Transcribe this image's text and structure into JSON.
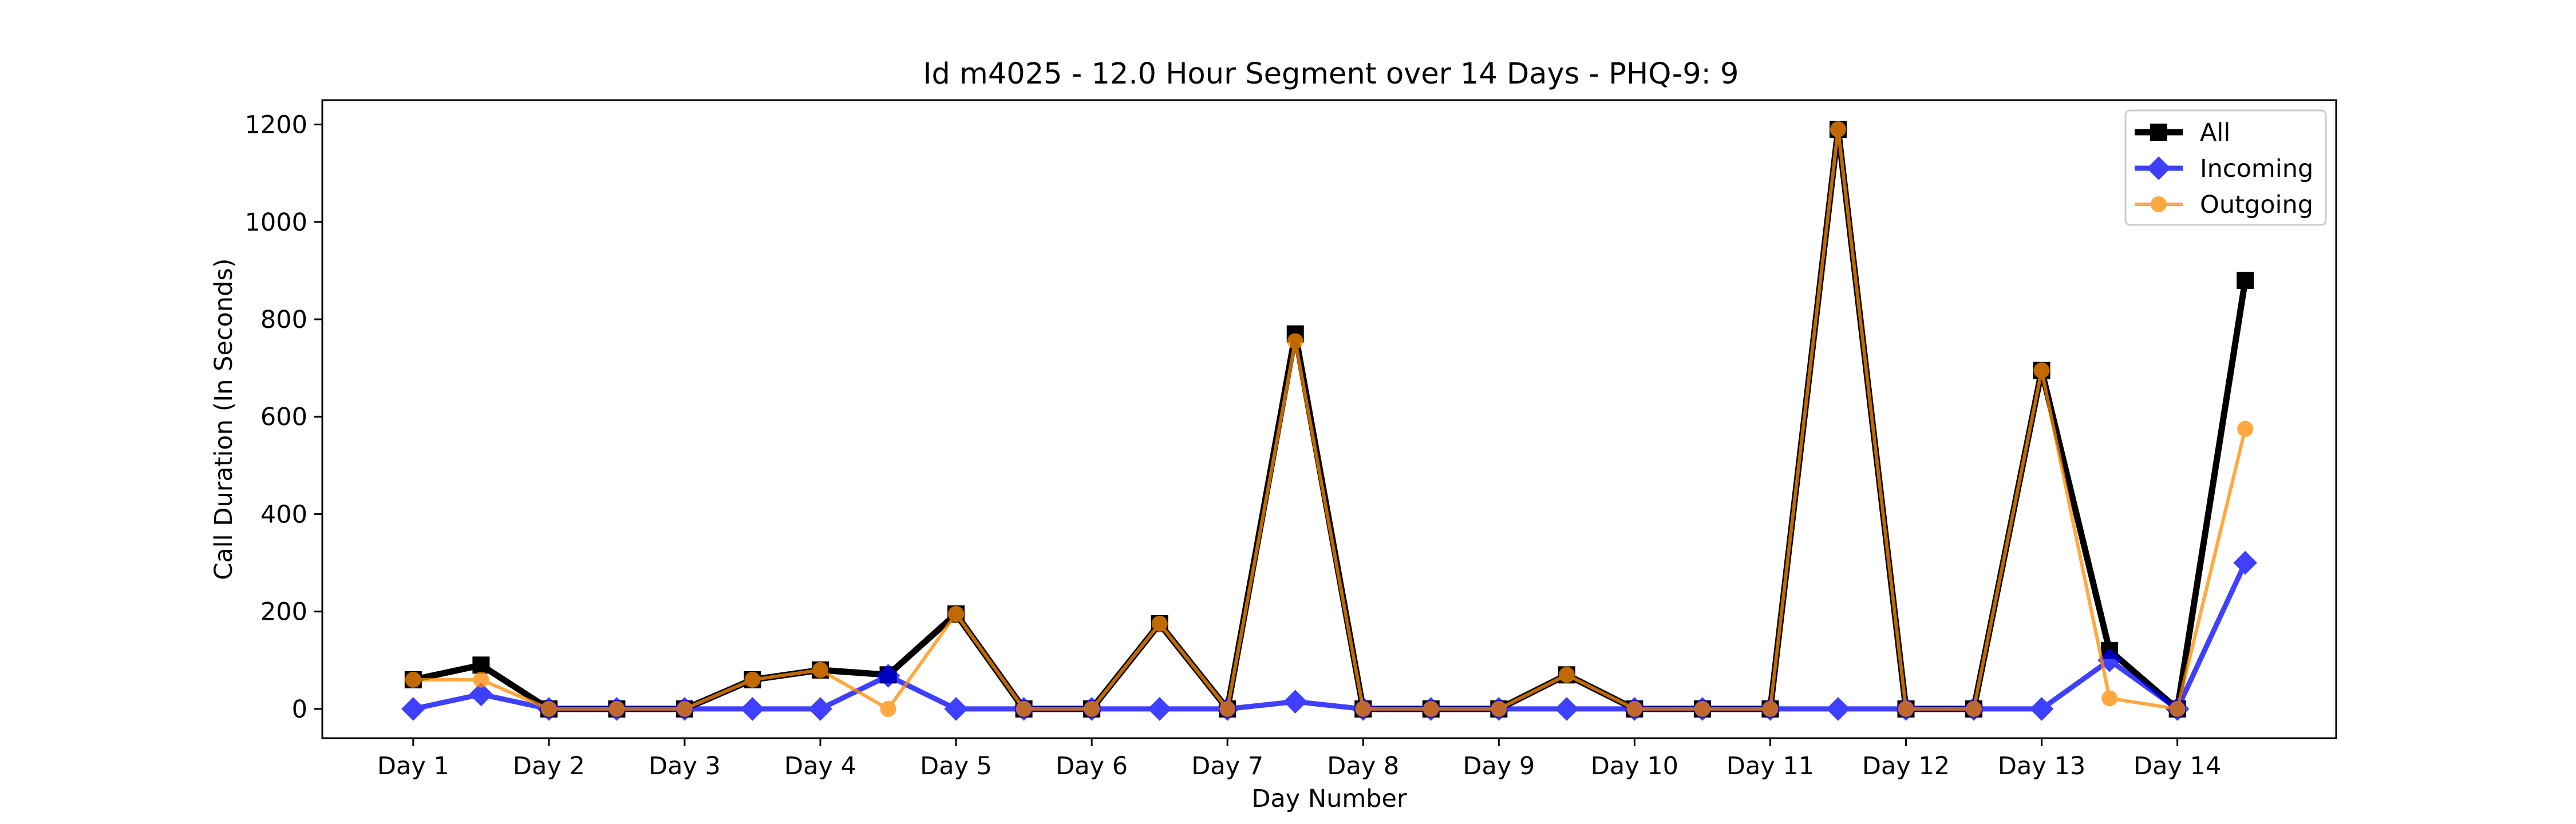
{
  "chart_data": {
    "type": "line",
    "title": "Id m4025 - 12.0 Hour Segment over 14 Days - PHQ-9: 9",
    "xlabel": "Day Number",
    "ylabel": "Call Duration (In Seconds)",
    "x": [
      1,
      1.5,
      2,
      2.5,
      3,
      3.5,
      4,
      4.5,
      5,
      5.5,
      6,
      6.5,
      7,
      7.5,
      8,
      8.5,
      9,
      9.5,
      10,
      10.5,
      11,
      11.5,
      12,
      12.5,
      13,
      13.5,
      14,
      14.5
    ],
    "xticks": [
      1,
      2,
      3,
      4,
      5,
      6,
      7,
      8,
      9,
      10,
      11,
      12,
      13,
      14
    ],
    "xtick_labels": [
      "Day 1",
      "Day 2",
      "Day 3",
      "Day 4",
      "Day 5",
      "Day 6",
      "Day 7",
      "Day 8",
      "Day 9",
      "Day 10",
      "Day 11",
      "Day 12",
      "Day 13",
      "Day 14"
    ],
    "xlim": [
      0.33,
      15.17
    ],
    "ylim": [
      -60,
      1250
    ],
    "yticks": [
      0,
      200,
      400,
      600,
      800,
      1000,
      1200
    ],
    "grid": false,
    "legend_position": "top-right",
    "series": [
      {
        "name": "All",
        "color": "#000000",
        "marker": "square",
        "values": [
          60,
          90,
          0,
          0,
          0,
          60,
          80,
          70,
          195,
          0,
          0,
          175,
          0,
          770,
          0,
          0,
          0,
          70,
          0,
          0,
          0,
          1190,
          0,
          0,
          695,
          120,
          0,
          880
        ]
      },
      {
        "name": "Incoming",
        "color": "#0000ff",
        "marker": "diamond",
        "values": [
          0,
          30,
          0,
          0,
          0,
          0,
          0,
          68,
          0,
          0,
          0,
          0,
          0,
          15,
          0,
          0,
          0,
          0,
          0,
          0,
          0,
          0,
          0,
          0,
          0,
          100,
          0,
          300
        ]
      },
      {
        "name": "Outgoing",
        "color": "#ff8c00",
        "marker": "circle",
        "values": [
          60,
          60,
          0,
          0,
          0,
          60,
          80,
          0,
          195,
          0,
          0,
          175,
          0,
          755,
          0,
          0,
          0,
          70,
          0,
          0,
          0,
          1190,
          0,
          0,
          695,
          22,
          0,
          575
        ]
      }
    ]
  }
}
